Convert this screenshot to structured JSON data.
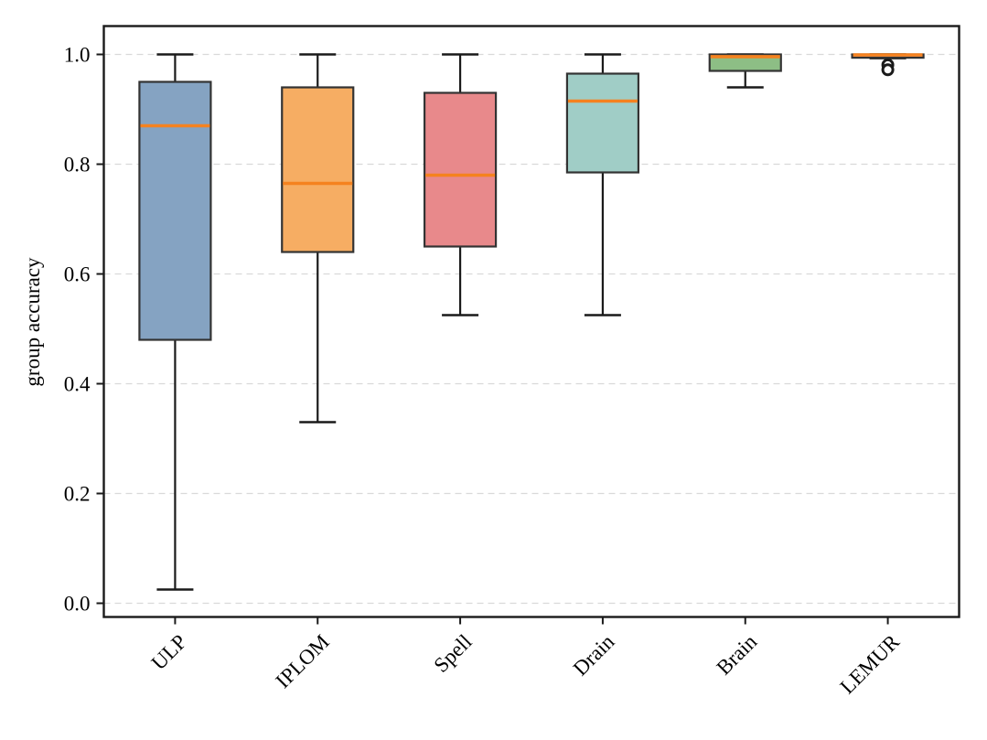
{
  "chart_data": {
    "type": "box",
    "title": "",
    "xlabel": "",
    "ylabel": "group accuracy",
    "categories": [
      "ULP",
      "IPLOM",
      "Spell",
      "Drain",
      "Brain",
      "LEMUR"
    ],
    "yticks": [
      0.0,
      0.2,
      0.4,
      0.6,
      0.8,
      1.0
    ],
    "ytick_labels": [
      "0.0",
      "0.2",
      "0.4",
      "0.6",
      "0.8",
      "1.0"
    ],
    "ylim": [
      -0.026,
      1.052
    ],
    "grid": {
      "horizontal": true,
      "style": "dashed",
      "color": "#d9d9d9"
    },
    "legend": "none",
    "frame_color": "#1a1a1a",
    "median_color": "#f5821f",
    "box_edge_color": "#333333",
    "whisker_color": "#1a1a1a",
    "series": [
      {
        "name": "ULP",
        "color": "#85a3c2",
        "whisker_low": 0.025,
        "q1": 0.48,
        "median": 0.87,
        "q3": 0.95,
        "whisker_high": 1.0,
        "outliers": []
      },
      {
        "name": "IPLOM",
        "color": "#f6ad63",
        "whisker_low": 0.33,
        "q1": 0.64,
        "median": 0.765,
        "q3": 0.94,
        "whisker_high": 1.0,
        "outliers": []
      },
      {
        "name": "Spell",
        "color": "#e8898b",
        "whisker_low": 0.525,
        "q1": 0.65,
        "median": 0.78,
        "q3": 0.93,
        "whisker_high": 1.0,
        "outliers": []
      },
      {
        "name": "Drain",
        "color": "#a0cdc6",
        "whisker_low": 0.525,
        "q1": 0.785,
        "median": 0.915,
        "q3": 0.965,
        "whisker_high": 1.0,
        "outliers": []
      },
      {
        "name": "Brain",
        "color": "#8dbe85",
        "whisker_low": 0.94,
        "q1": 0.97,
        "median": 0.996,
        "q3": 1.0,
        "whisker_high": 1.0,
        "outliers": []
      },
      {
        "name": "LEMUR",
        "color": "#c3b1d0",
        "whisker_low": 0.993,
        "q1": 0.994,
        "median": 0.999,
        "q3": 1.0,
        "whisker_high": 1.0,
        "outliers": [
          0.981,
          0.972
        ]
      }
    ]
  }
}
